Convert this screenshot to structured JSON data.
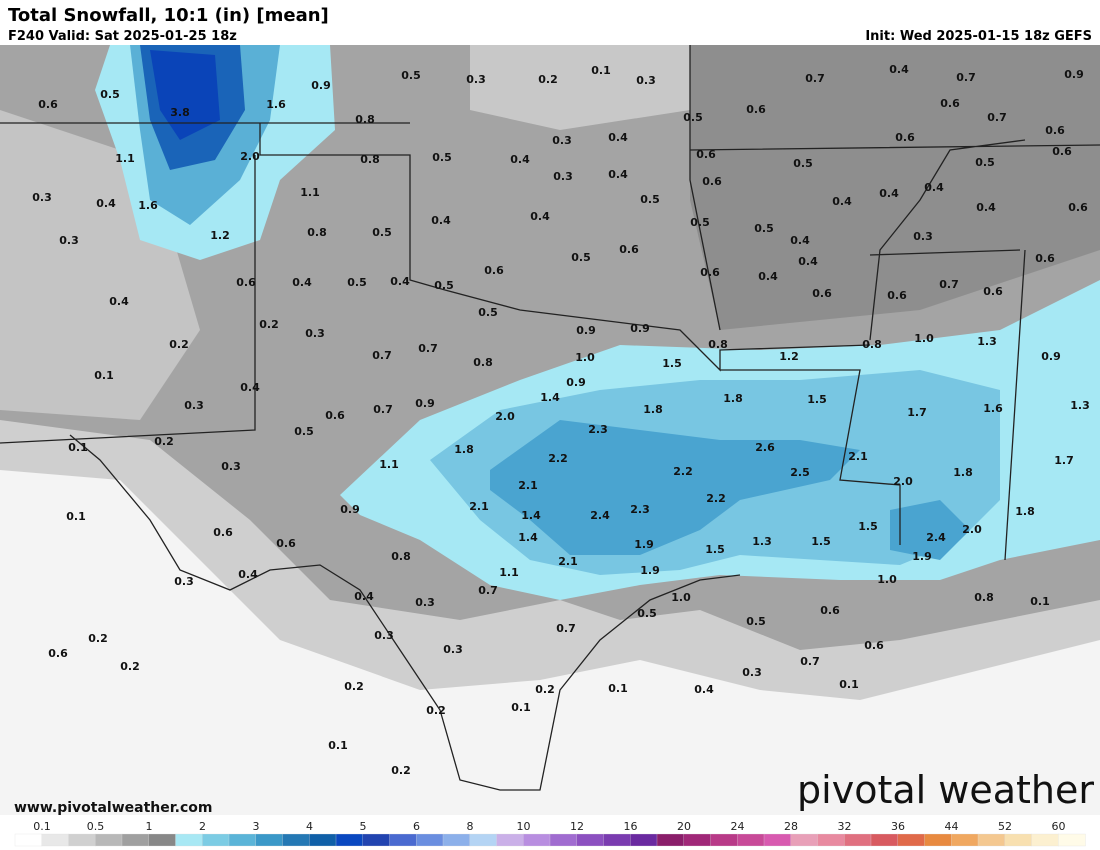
{
  "header": {
    "title": "Total Snowfall, 10:1 (in) [mean]",
    "valid": "F240 Valid: Sat 2025-01-25 18z",
    "init": "Init: Wed 2025-01-15 18z GEFS"
  },
  "map": {
    "labels": [
      "0.6",
      "0.5",
      "3.8",
      "1.6",
      "0.9",
      "0.5",
      "0.3",
      "0.2",
      "0.1",
      "0.3",
      "0.7",
      "0.4",
      "0.7",
      "0.9",
      "0.5",
      "0.6",
      "0.6",
      "0.7",
      "0.6",
      "0.8",
      "0.3",
      "0.4",
      "0.6",
      "0.6",
      "1.1",
      "2.0",
      "0.8",
      "0.5",
      "0.4",
      "0.3",
      "0.4",
      "0.6",
      "0.6",
      "0.5",
      "0.5",
      "0.3",
      "0.4",
      "1.6",
      "1.1",
      "0.5",
      "0.4",
      "0.4",
      "0.4",
      "0.4",
      "0.6",
      "0.3",
      "1.2",
      "0.8",
      "0.5",
      "0.4",
      "0.4",
      "0.5",
      "0.5",
      "0.4",
      "0.3",
      "0.4",
      "0.6",
      "0.4",
      "0.5",
      "0.4",
      "0.5",
      "0.6",
      "0.5",
      "0.6",
      "0.6",
      "0.4",
      "0.4",
      "0.6",
      "0.6",
      "0.7",
      "0.6",
      "0.6",
      "0.2",
      "0.3",
      "0.5",
      "0.9",
      "0.9",
      "0.8",
      "1.2",
      "0.8",
      "1.0",
      "1.3",
      "0.9",
      "0.2",
      "0.1",
      "0.7",
      "0.7",
      "0.8",
      "1.0",
      "1.5",
      "0.4",
      "0.9",
      "0.3",
      "0.6",
      "0.7",
      "0.9",
      "1.4",
      "1.8",
      "1.5",
      "1.3",
      "1.7",
      "1.6",
      "1.8",
      "0.1",
      "0.2",
      "0.5",
      "2.0",
      "2.3",
      "1.8",
      "2.6",
      "2.1",
      "1.7",
      "0.3",
      "1.1",
      "2.2",
      "2.2",
      "2.5",
      "1.8",
      "2.0",
      "2.1",
      "0.1",
      "0.9",
      "2.1",
      "2.2",
      "2.3",
      "2.4",
      "1.4",
      "1.8",
      "0.6",
      "0.6",
      "1.4",
      "1.9",
      "1.3",
      "1.5",
      "1.5",
      "2.4",
      "2.0",
      "1.5",
      "1.9",
      "0.8",
      "2.1",
      "0.4",
      "0.3",
      "1.1",
      "1.9",
      "1.0",
      "0.7",
      "0.4",
      "0.3",
      "1.0",
      "0.8",
      "0.1",
      "0.5",
      "0.6",
      "0.3",
      "0.2",
      "0.7",
      "0.5",
      "0.6",
      "0.6",
      "0.3",
      "0.2",
      "0.7",
      "0.3",
      "0.2",
      "0.1",
      "0.4",
      "0.1",
      "0.2",
      "0.2",
      "0.1",
      "0.1",
      "0.2"
    ]
  },
  "footer": {
    "url": "www.pivotalweather.com",
    "brand": "pivotal weather",
    "colorbar": {
      "labels": [
        "0.1",
        "0.5",
        "1",
        "2",
        "3",
        "4",
        "5",
        "6",
        "8",
        "10",
        "12",
        "16",
        "20",
        "24",
        "28",
        "32",
        "36",
        "44",
        "52",
        "60"
      ],
      "colors": [
        "#ffffff",
        "#e8e8e8",
        "#d0d0d0",
        "#b8b8b8",
        "#a0a0a0",
        "#888888",
        "#a8e8f4",
        "#7ccce4",
        "#5ab4d8",
        "#3a98c8",
        "#2478b4",
        "#1060a8",
        "#0a48c0",
        "#2244b0",
        "#4a6ad0",
        "#6a8ee0",
        "#8cb0ea",
        "#b4d4f4",
        "#cab0e8",
        "#b88ee0",
        "#a06cd0",
        "#8c50c0",
        "#7a3cb0",
        "#6a2aa0",
        "#8a1e6a",
        "#a02878",
        "#b83a88",
        "#c84a98",
        "#d85ab0",
        "#e8a0b8",
        "#e88aa0",
        "#e07080",
        "#d85a60",
        "#e06a4a",
        "#e88a40",
        "#f0a860",
        "#f4c890",
        "#f8e0b0",
        "#fcf0d0",
        "#fffbe8"
      ]
    }
  }
}
